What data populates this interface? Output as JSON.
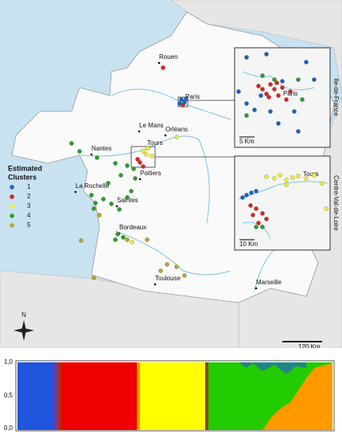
{
  "map": {
    "cities": [
      "Rouen",
      "Paris",
      "Le Mans",
      "Orléans",
      "Nantes",
      "Tours",
      "Poitiers",
      "La Rochelle",
      "Saintes",
      "Bordeaux",
      "Toulouse",
      "Marseille"
    ],
    "legend": {
      "title": [
        "Estimated",
        "Clusters"
      ],
      "items": [
        {
          "label": "1",
          "color": "#1565c0"
        },
        {
          "label": "2",
          "color": "#e32020"
        },
        {
          "label": "3",
          "color": "#f3ef2a"
        },
        {
          "label": "4",
          "color": "#2e9a2e"
        },
        {
          "label": "5",
          "color": "#b8a830"
        }
      ]
    },
    "insets": [
      {
        "region": "Ile-de-France",
        "city": "Paris",
        "scale": "5 Km"
      },
      {
        "region": "Centre-Val-de-Loire",
        "city": "Tours",
        "scale": "10 Km"
      }
    ],
    "scale": "120 Km",
    "north": "N"
  },
  "structure_plot": {
    "yticks": [
      "1,0",
      "0,5",
      "0,0"
    ]
  }
}
